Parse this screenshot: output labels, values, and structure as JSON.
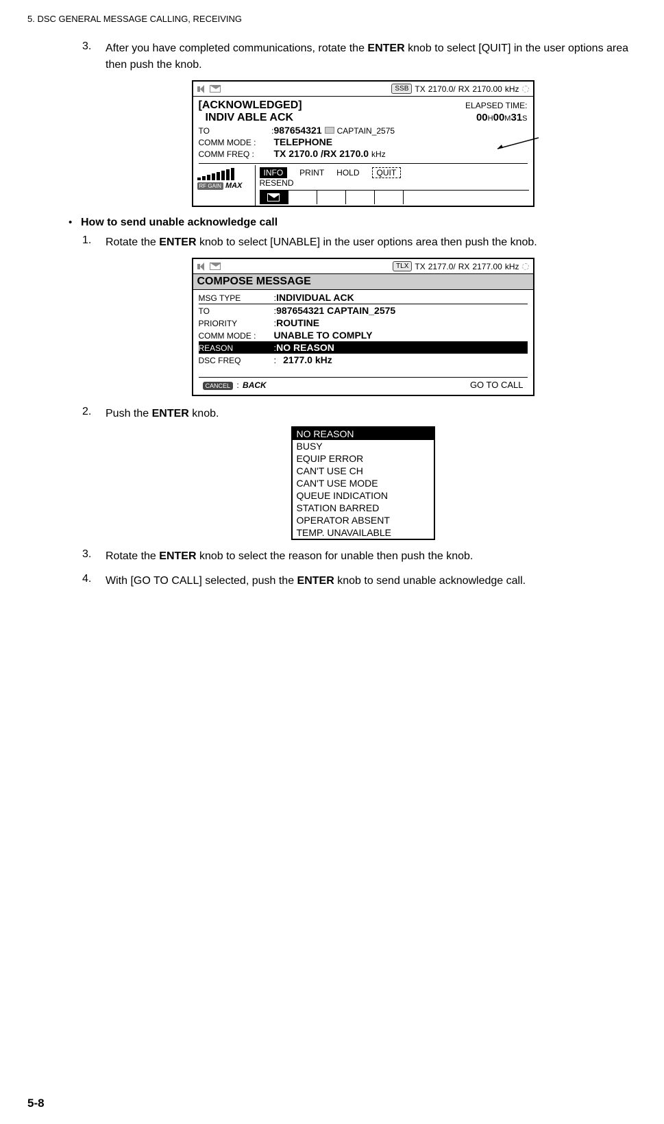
{
  "header": "5.  DSC GENERAL MESSAGE CALLING, RECEIVING",
  "step3a": {
    "num": "3.",
    "text_pre": "After you have completed communications, rotate the ",
    "enter": "ENTER",
    "text_post": " knob to select [QUIT] in the user options area then push the knob."
  },
  "screen1": {
    "topbar": {
      "mode": "SSB",
      "txl": "TX",
      "txv": "2170.0/",
      "rxl": "RX",
      "rxv": "2170.00",
      "unit": "kHz"
    },
    "title": "[ACKNOWLEDGED]",
    "subtitle": "INDIV  ABLE  ACK",
    "elapsed_l": "ELAPSED TIME:",
    "elapsed_v_h": "00",
    "elapsed_h": "H",
    "elapsed_v_m": "00",
    "elapsed_m": "M",
    "elapsed_v_s": "31",
    "elapsed_s": "S",
    "to_l": "TO",
    "to_v": "987654321",
    "to_name": "CAPTAIN_2575",
    "cm_l": "COMM MODE :",
    "cm_v": "TELEPHONE",
    "cf_l": "COMM FREQ  :",
    "cf_v": "TX   2170.0 /RX    2170.0",
    "cf_u": "kHz",
    "opts": {
      "info": "INFO",
      "print": "PRINT",
      "hold": "HOLD",
      "quit": "QUIT",
      "resend": "RESEND"
    },
    "rf": {
      "label": "RF GAIN",
      "max": "MAX"
    }
  },
  "bullet": "How to send unable acknowledge call",
  "step1b": {
    "num": "1.",
    "text_pre": "Rotate the ",
    "enter": "ENTER",
    "text_post": " knob to select [UNABLE] in the user options area then push the knob."
  },
  "screen2": {
    "topbar": {
      "mode": "TLX",
      "txl": "TX",
      "txv": "2177.0/",
      "rxl": "RX",
      "rxv": "2177.00",
      "unit": "kHz"
    },
    "title": "COMPOSE MESSAGE",
    "rows": {
      "msg_l": "MSG TYPE",
      "msg_v": "INDIVIDUAL  ACK",
      "to_l": "TO",
      "to_v": "987654321  CAPTAIN_2575",
      "pri_l": "PRIORITY",
      "pri_v": "ROUTINE",
      "cm_l": "COMM MODE :",
      "cm_v": "UNABLE TO COMPLY",
      "rsn_l": "REASON",
      "rsn_v": "NO REASON",
      "dsc_l": "DSC FREQ",
      "dsc_v": "2177.0 kHz"
    },
    "footer": {
      "cancel": "CANCEL",
      "back": "BACK",
      "goto": "GO TO CALL"
    }
  },
  "step2b": {
    "num": "2.",
    "text_pre": "Push the ",
    "enter": "ENTER",
    "text_post": " knob."
  },
  "reasons": [
    "NO REASON",
    "BUSY",
    "EQUIP ERROR",
    "CAN'T USE CH",
    "CAN'T USE MODE",
    "QUEUE INDICATION",
    "STATION BARRED",
    "OPERATOR ABSENT",
    "TEMP. UNAVAILABLE"
  ],
  "step3b": {
    "num": "3.",
    "text_pre": "Rotate the ",
    "enter": "ENTER",
    "text_post": " knob to select the reason for unable then push the knob."
  },
  "step4b": {
    "num": "4.",
    "text_pre": "With [GO TO CALL] selected, push the ",
    "enter": "ENTER",
    "text_post": " knob to send unable acknowledge call."
  },
  "page": "5-8"
}
